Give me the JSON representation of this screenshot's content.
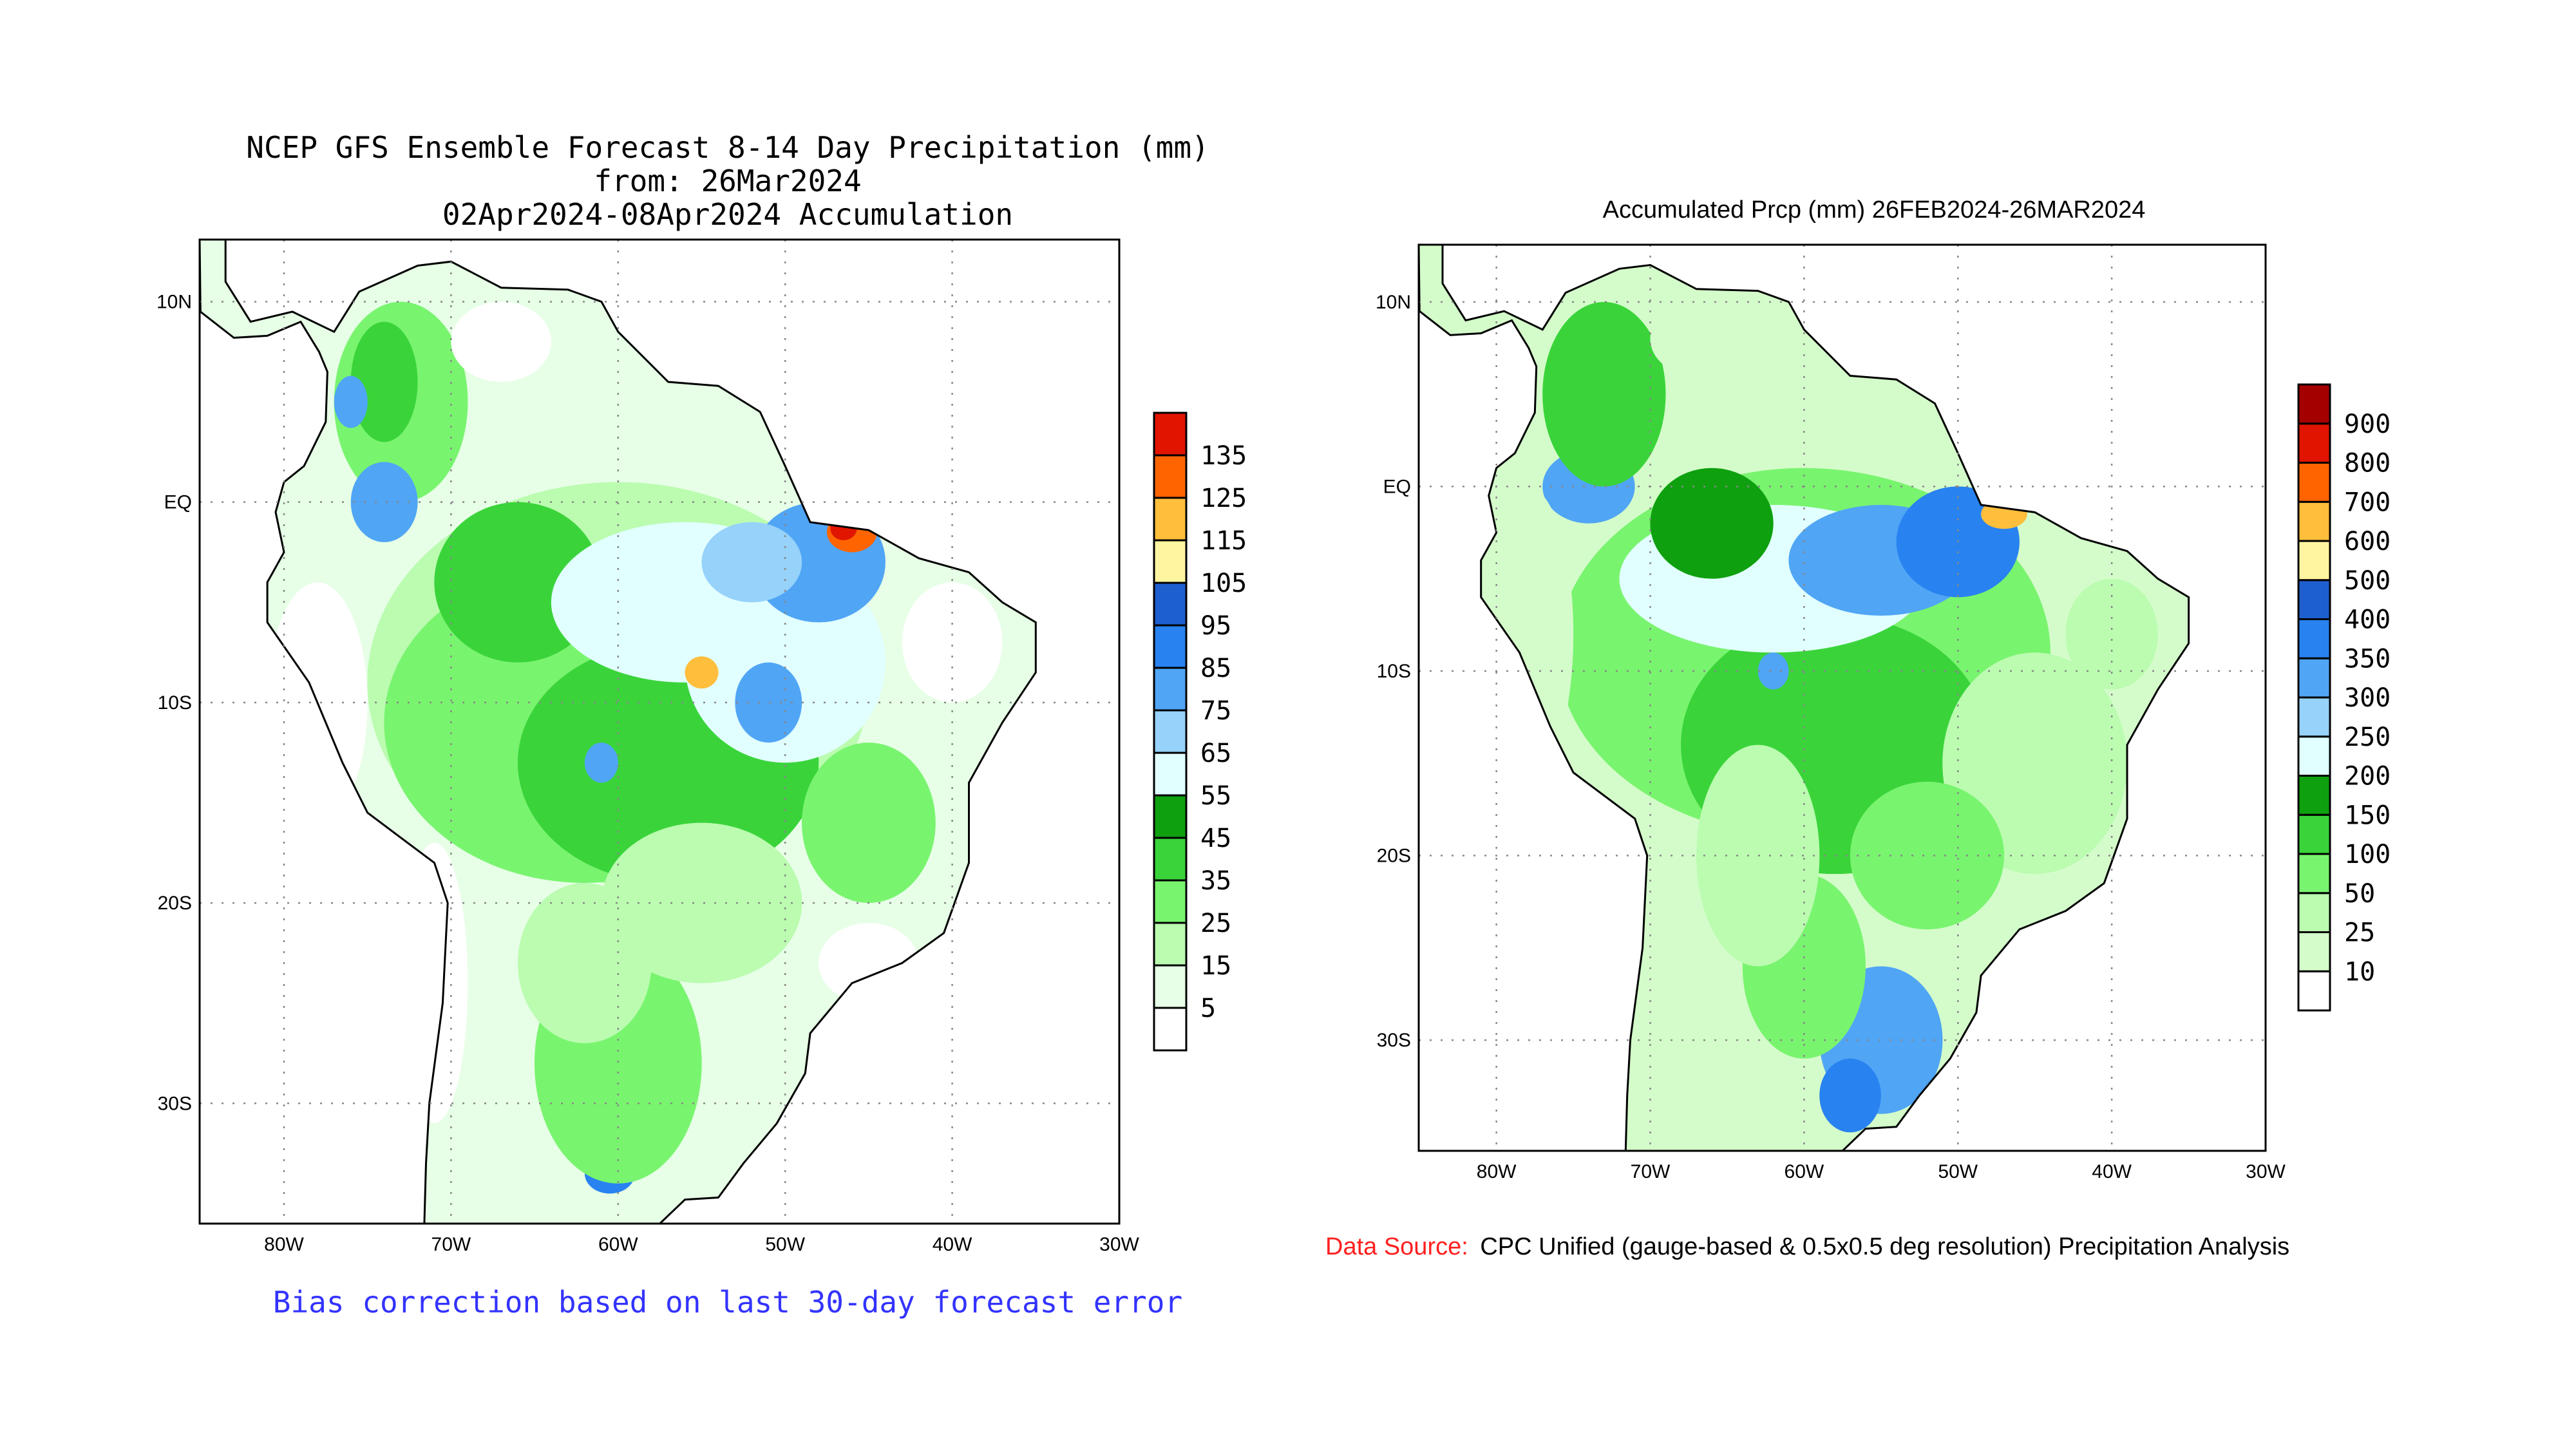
{
  "chart_data": [
    {
      "type": "heatmap",
      "title_lines": [
        "NCEP GFS Ensemble Forecast 8-14 Day Precipitation (mm)",
        "from: 26Mar2024",
        "02Apr2024-08Apr2024 Accumulation"
      ],
      "footnote": "Bias correction based on last 30-day forecast error",
      "xlim": [
        "85W",
        "30W"
      ],
      "ylim": [
        "36S",
        "13N"
      ],
      "x_ticks": [
        "80W",
        "70W",
        "60W",
        "50W",
        "40W",
        "30W"
      ],
      "y_ticks": [
        "10N",
        "EQ",
        "10S",
        "20S",
        "30S"
      ],
      "grid": "dotted",
      "colorbar": {
        "placement": "right",
        "levels": [
          "5",
          "15",
          "25",
          "35",
          "45",
          "55",
          "65",
          "75",
          "85",
          "95",
          "105",
          "115",
          "125",
          "135"
        ],
        "colors": [
          "#ffffff",
          "#e6ffe6",
          "#bbfcb0",
          "#79f46f",
          "#3ad43a",
          "#0fa00f",
          "#e1ffff",
          "#96d2fa",
          "#50a5f5",
          "#2882f0",
          "#1e5fd0",
          "#fff5a0",
          "#ffbe3c",
          "#ff6400",
          "#e11400"
        ]
      }
    },
    {
      "type": "heatmap",
      "title_lines": [
        "Accumulated Prcp (mm) 26FEB2024-26MAR2024"
      ],
      "source_label": "Data Source:",
      "source_text": "CPC Unified (gauge-based & 0.5x0.5 deg resolution) Precipitation Analysis",
      "xlim": [
        "85W",
        "30W"
      ],
      "ylim": [
        "36S",
        "13N"
      ],
      "x_ticks": [
        "80W",
        "70W",
        "60W",
        "50W",
        "40W",
        "30W"
      ],
      "y_ticks": [
        "10N",
        "EQ",
        "10S",
        "20S",
        "30S"
      ],
      "grid": "dotted",
      "colorbar": {
        "placement": "right",
        "levels": [
          "10",
          "25",
          "50",
          "100",
          "150",
          "200",
          "250",
          "300",
          "350",
          "400",
          "500",
          "600",
          "700",
          "800",
          "900"
        ],
        "colors": [
          "#ffffff",
          "#d4fcca",
          "#bbfcb0",
          "#79f46f",
          "#3ad43a",
          "#0fa00f",
          "#e1ffff",
          "#96d2fa",
          "#50a5f5",
          "#2882f0",
          "#1e5fd0",
          "#fff5a0",
          "#ffbe3c",
          "#ff6400",
          "#e11400",
          "#a50000"
        ]
      }
    }
  ],
  "colors": {
    "footnote": "#3333ff",
    "source_label": "#ff2020"
  }
}
